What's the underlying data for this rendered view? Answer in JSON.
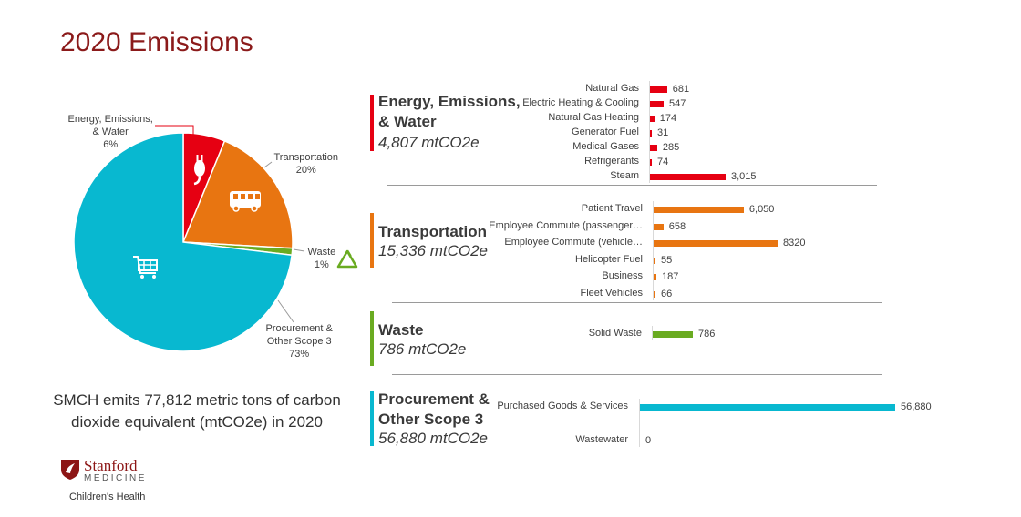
{
  "title": "2020 Emissions",
  "summary": "SMCH emits 77,812 metric tons of carbon dioxide equivalent (mtCO2e) in 2020",
  "logo": {
    "name": "Stanford",
    "sub": "MEDICINE",
    "child": "Children's Health"
  },
  "colors": {
    "energy": "#e60012",
    "transportation": "#e87511",
    "waste": "#6aab21",
    "procurement": "#08b8d0",
    "title": "#8b1a1a"
  },
  "chart_data": [
    {
      "type": "pie",
      "slices": [
        {
          "name": "Energy, Emissions, & Water",
          "label_lines": [
            "Energy, Emissions,",
            "& Water"
          ],
          "percent_label": "6%",
          "value": 4807,
          "icon": "plug-icon"
        },
        {
          "name": "Transportation",
          "label_lines": [
            "Transportation"
          ],
          "percent_label": "20%",
          "value": 15336,
          "icon": "bus-icon"
        },
        {
          "name": "Waste",
          "label_lines": [
            "Waste"
          ],
          "percent_label": "1%",
          "value": 786,
          "icon": "recycle-icon"
        },
        {
          "name": "Procurement & Other Scope 3",
          "label_lines": [
            "Procurement &",
            "Other Scope 3"
          ],
          "percent_label": "73%",
          "value": 56880,
          "icon": "shopping-cart-icon"
        }
      ]
    },
    {
      "type": "bar",
      "orientation": "horizontal",
      "sections": [
        {
          "key": "energy",
          "title_lines": [
            "Energy, Emissions,",
            "& Water"
          ],
          "total": "4,807 mtCO2e",
          "categories": [
            "Natural Gas",
            "Electric Heating & Cooling",
            "Natural Gas Heating",
            "Generator Fuel",
            "Medical Gases",
            "Refrigerants",
            "Steam"
          ],
          "values": [
            681,
            547,
            174,
            31,
            285,
            74,
            3015
          ],
          "value_labels": [
            "681",
            "547",
            "174",
            "31",
            "285",
            "74",
            "3,015"
          ]
        },
        {
          "key": "transportation",
          "title_lines": [
            "Transportation"
          ],
          "total": "15,336 mtCO2e",
          "categories": [
            "Patient Travel",
            "Employee Commute (passenger…",
            "Employee Commute (vehicle…",
            "Helicopter Fuel",
            "Business",
            "Fleet Vehicles"
          ],
          "values": [
            6050,
            658,
            8320,
            55,
            187,
            66
          ],
          "value_labels": [
            "6,050",
            "658",
            "8320",
            "55",
            "187",
            "66"
          ]
        },
        {
          "key": "waste",
          "title_lines": [
            "Waste"
          ],
          "total": "786 mtCO2e",
          "categories": [
            "Solid Waste"
          ],
          "values": [
            786
          ],
          "value_labels": [
            "786"
          ]
        },
        {
          "key": "procurement",
          "title_lines": [
            "Procurement &",
            "Other Scope 3"
          ],
          "total": "56,880 mtCO2e",
          "categories": [
            "Purchased Goods & Services",
            "Wastewater"
          ],
          "values": [
            56880,
            0
          ],
          "value_labels": [
            "56,880",
            "0"
          ]
        }
      ]
    }
  ]
}
